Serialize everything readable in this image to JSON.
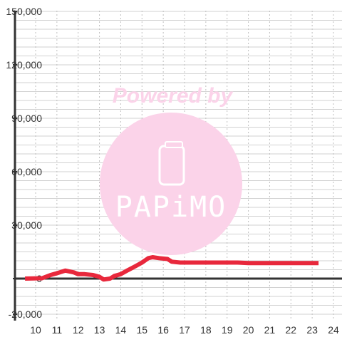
{
  "chart_data": {
    "type": "line",
    "title": "",
    "xlabel": "",
    "ylabel": "",
    "xlim": [
      9.5,
      24.5
    ],
    "ylim": [
      -20000,
      150000
    ],
    "x_ticks": [
      "10",
      "11",
      "12",
      "13",
      "14",
      "15",
      "16",
      "17",
      "18",
      "19",
      "20",
      "21",
      "22",
      "23",
      "24"
    ],
    "y_ticks": [
      "150,000",
      "120,000",
      "90,000",
      "60,000",
      "30,000",
      "0",
      "-20,000"
    ],
    "y_tick_values": [
      150000,
      120000,
      90000,
      60000,
      30000,
      0,
      -20000
    ],
    "grid": true,
    "series": [
      {
        "color": "#e8283c",
        "x": [
          9.5,
          10.3,
          10.7,
          11.0,
          11.4,
          11.8,
          12.0,
          12.3,
          12.7,
          13.0,
          13.2,
          13.5,
          13.7,
          14.0,
          14.3,
          14.7,
          15.0,
          15.3,
          15.5,
          15.8,
          16.2,
          16.4,
          16.8,
          17.2,
          18.0,
          19.0,
          19.5,
          20.0,
          21.0,
          22.0,
          23.0,
          23.3
        ],
        "y": [
          0,
          200,
          2000,
          3000,
          4500,
          3500,
          2500,
          2500,
          2000,
          1000,
          -500,
          0,
          1500,
          2500,
          4500,
          7000,
          9000,
          11500,
          12000,
          11500,
          11000,
          9500,
          9000,
          9000,
          9000,
          9000,
          9000,
          8700,
          8700,
          8700,
          8700,
          8700
        ]
      }
    ],
    "watermark": {
      "text": "Powered by",
      "logo": "PAPiMO",
      "logo_icon": "phone-icon",
      "circle_color": "#fbd3e9"
    }
  }
}
